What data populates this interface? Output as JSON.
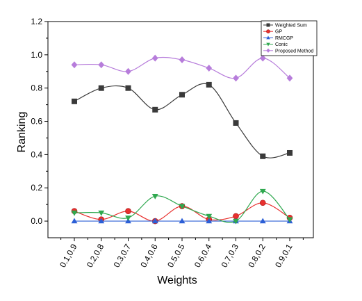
{
  "chart_data": {
    "type": "line",
    "xlabel": "Weights",
    "ylabel": "Ranking",
    "categories": [
      "0.1,0.9",
      "0.2,0.8",
      "0.3,0.7",
      "0.4,0.6",
      "0.5,0.5",
      "0.6,0.4",
      "0.7,0.3",
      "0.8,0.2",
      "0.9,0.1"
    ],
    "ylim": [
      -0.1,
      1.2
    ],
    "yticks": [
      0.0,
      0.2,
      0.4,
      0.6,
      0.8,
      1.0,
      1.2
    ],
    "ytick_labels": [
      "0.0",
      "0.2",
      "0.4",
      "0.6",
      "0.8",
      "1.0",
      "1.2"
    ],
    "grid": false,
    "legend_position": "top-right",
    "smooth_lines": true,
    "series": [
      {
        "name": "Weighted Sum",
        "color": "#3a3a3a",
        "marker": "square",
        "values": [
          0.72,
          0.8,
          0.8,
          0.67,
          0.76,
          0.82,
          0.59,
          0.39,
          0.41
        ]
      },
      {
        "name": "GP",
        "color": "#e8302e",
        "marker": "circle",
        "values": [
          0.06,
          0.01,
          0.06,
          0.0,
          0.09,
          0.01,
          0.03,
          0.11,
          0.02
        ]
      },
      {
        "name": "RMCGP",
        "color": "#2c5fd6",
        "marker": "triangle-up",
        "values": [
          0.0,
          0.0,
          0.0,
          0.0,
          0.0,
          0.0,
          0.0,
          0.0,
          0.0
        ]
      },
      {
        "name": "Conic",
        "color": "#2fa84f",
        "marker": "triangle-down",
        "values": [
          0.05,
          0.05,
          0.02,
          0.15,
          0.09,
          0.03,
          0.0,
          0.18,
          0.01
        ]
      },
      {
        "name": "Proposed Method",
        "color": "#b77ddb",
        "marker": "diamond",
        "values": [
          0.94,
          0.94,
          0.9,
          0.98,
          0.97,
          0.92,
          0.86,
          0.98,
          0.86
        ]
      }
    ]
  }
}
